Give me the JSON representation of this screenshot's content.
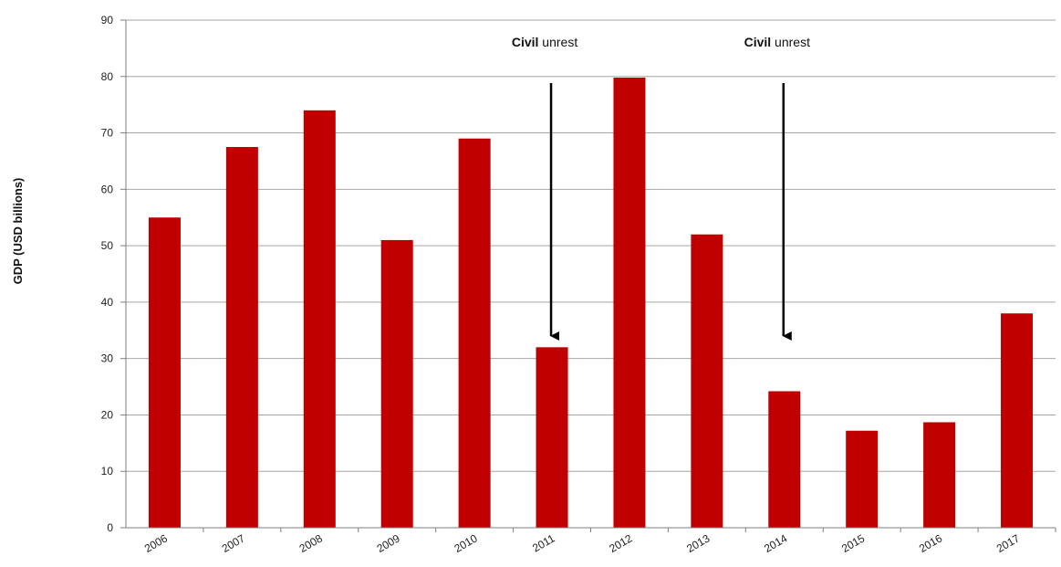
{
  "chart_data": {
    "type": "bar",
    "categories": [
      "2006",
      "2007",
      "2008",
      "2009",
      "2010",
      "2011",
      "2012",
      "2013",
      "2014",
      "2015",
      "2016",
      "2017"
    ],
    "series": [
      {
        "values": [
          55,
          67.5,
          74,
          51,
          69,
          32,
          79.8,
          52,
          24.2,
          17.2,
          18.7,
          38
        ]
      }
    ],
    "ylabel": "GDP (USD billions)",
    "xlabel": "",
    "ylim": [
      0,
      90
    ],
    "yticks": [
      0,
      10,
      20,
      30,
      40,
      50,
      60,
      70,
      80,
      90
    ],
    "grid": true,
    "bar_color": "#C00000",
    "grid_color": "#A6A6A6",
    "annotations": [
      {
        "category": "2011",
        "bold_text": "Civil",
        "text": "unrest"
      },
      {
        "category": "2014",
        "bold_text": "Civil",
        "text": "unrest"
      }
    ]
  }
}
